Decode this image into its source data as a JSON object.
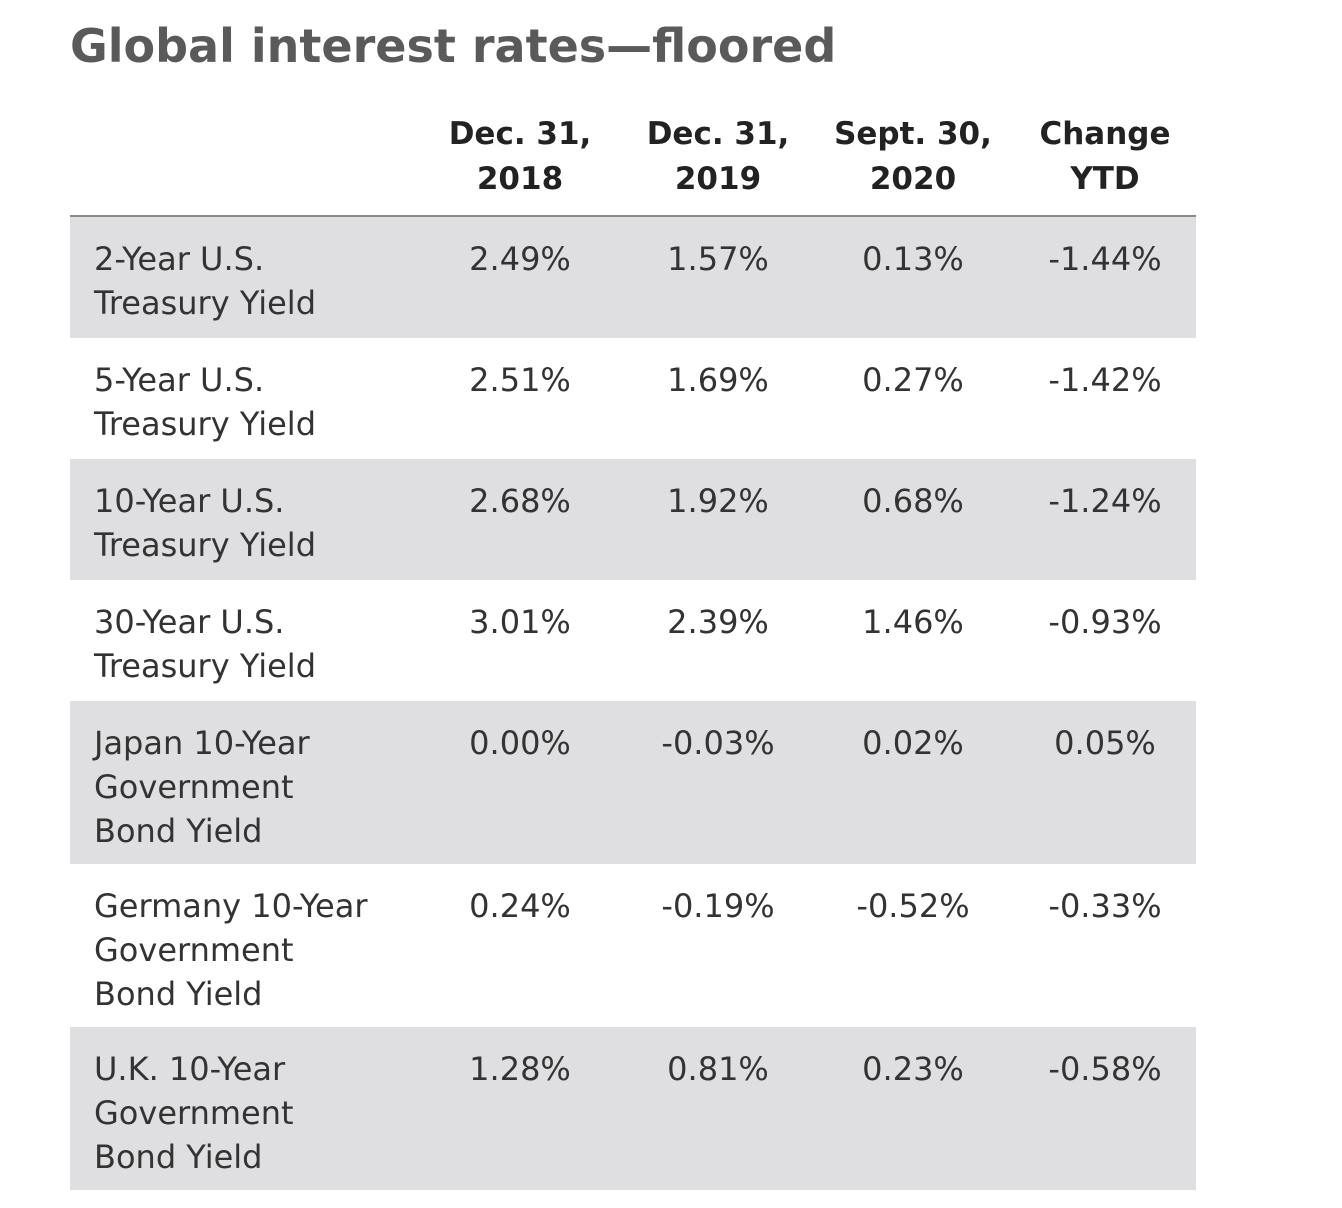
{
  "title": "Global interest rates—floored",
  "columns": [
    {
      "line1": "Dec. 31,",
      "line2": "2018"
    },
    {
      "line1": "Dec. 31,",
      "line2": "2019"
    },
    {
      "line1": "Sept. 30,",
      "line2": "2020"
    },
    {
      "line1": "Change",
      "line2": "YTD"
    }
  ],
  "rows": [
    {
      "label": [
        "2-Year U.S.",
        "Treasury Yield"
      ],
      "values": [
        "2.49%",
        "1.57%",
        "0.13%",
        "-1.44%"
      ]
    },
    {
      "label": [
        "5-Year U.S.",
        "Treasury Yield"
      ],
      "values": [
        "2.51%",
        "1.69%",
        "0.27%",
        "-1.42%"
      ]
    },
    {
      "label": [
        "10-Year U.S.",
        "Treasury Yield"
      ],
      "values": [
        "2.68%",
        "1.92%",
        "0.68%",
        "-1.24%"
      ]
    },
    {
      "label": [
        "30-Year U.S.",
        "Treasury Yield"
      ],
      "values": [
        "3.01%",
        "2.39%",
        "1.46%",
        "-0.93%"
      ]
    },
    {
      "label": [
        "Japan 10-Year",
        "Government",
        "Bond Yield"
      ],
      "values": [
        "0.00%",
        "-0.03%",
        "0.02%",
        "0.05%"
      ]
    },
    {
      "label": [
        "Germany 10-Year",
        "Government",
        "Bond Yield"
      ],
      "values": [
        "0.24%",
        "-0.19%",
        "-0.52%",
        "-0.33%"
      ]
    },
    {
      "label": [
        "U.K. 10-Year",
        "Government",
        "Bond Yield"
      ],
      "values": [
        "1.28%",
        "0.81%",
        "0.23%",
        "-0.58%"
      ]
    }
  ],
  "chart_data": {
    "type": "table",
    "title": "Global interest rates—floored",
    "columns": [
      "Dec. 31, 2018",
      "Dec. 31, 2019",
      "Sept. 30, 2020",
      "Change YTD"
    ],
    "rows": [
      {
        "name": "2-Year U.S. Treasury Yield",
        "values": [
          2.49,
          1.57,
          0.13,
          -1.44
        ]
      },
      {
        "name": "5-Year U.S. Treasury Yield",
        "values": [
          2.51,
          1.69,
          0.27,
          -1.42
        ]
      },
      {
        "name": "10-Year U.S. Treasury Yield",
        "values": [
          2.68,
          1.92,
          0.68,
          -1.24
        ]
      },
      {
        "name": "30-Year U.S. Treasury Yield",
        "values": [
          3.01,
          2.39,
          1.46,
          -0.93
        ]
      },
      {
        "name": "Japan 10-Year Government Bond Yield",
        "values": [
          0.0,
          -0.03,
          0.02,
          0.05
        ]
      },
      {
        "name": "Germany 10-Year Government Bond Yield",
        "values": [
          0.24,
          -0.19,
          -0.52,
          -0.33
        ]
      },
      {
        "name": "U.K. 10-Year Government Bond Yield",
        "values": [
          1.28,
          0.81,
          0.23,
          -0.58
        ]
      }
    ]
  },
  "colors": {
    "title": "#5a5a5a",
    "text": "#333333",
    "header_text": "#222222",
    "row_shade": "#dfdfe1",
    "header_rule": "#8a8a8a"
  }
}
